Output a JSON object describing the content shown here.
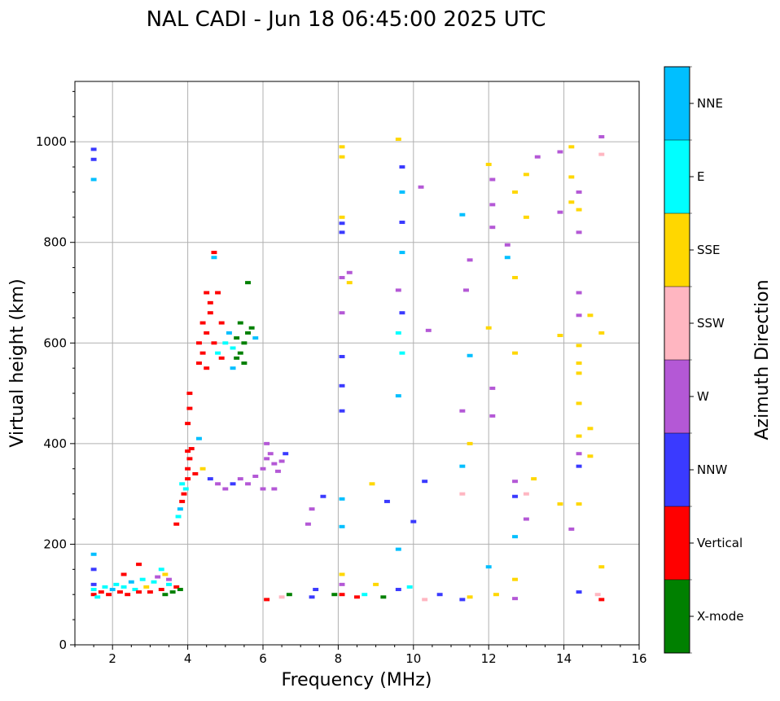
{
  "chart_data": {
    "type": "scatter",
    "title": "NAL CADI - Jun 18 06:45:00 2025 UTC",
    "xlabel": "Frequency (MHz)",
    "ylabel": "Virtual height (km)",
    "xlim": [
      1,
      16
    ],
    "ylim": [
      0,
      1120
    ],
    "xticks": [
      2,
      4,
      6,
      8,
      10,
      12,
      14,
      16
    ],
    "yticks": [
      0,
      200,
      400,
      600,
      800,
      1000
    ],
    "grid": true,
    "colorbar": {
      "label": "Azimuth Direction",
      "categories": [
        "X-mode",
        "Vertical",
        "NNW",
        "W",
        "SSW",
        "SSE",
        "E",
        "NNE"
      ],
      "colors": [
        "#008000",
        "#ff0000",
        "#3a3aff",
        "#b458d6",
        "#ffb6c1",
        "#ffd700",
        "#00ffff",
        "#00bfff"
      ]
    },
    "points_format": [
      "frequency_mhz",
      "height_km",
      "category_index"
    ],
    "points": [
      [
        1.5,
        100,
        1
      ],
      [
        1.5,
        110,
        6
      ],
      [
        1.5,
        120,
        2
      ],
      [
        1.6,
        95,
        6
      ],
      [
        1.7,
        105,
        1
      ],
      [
        1.8,
        115,
        6
      ],
      [
        1.9,
        100,
        1
      ],
      [
        2.0,
        110,
        7
      ],
      [
        2.1,
        120,
        6
      ],
      [
        2.2,
        105,
        1
      ],
      [
        2.3,
        115,
        6
      ],
      [
        2.4,
        100,
        1
      ],
      [
        2.5,
        125,
        7
      ],
      [
        2.6,
        110,
        6
      ],
      [
        2.7,
        105,
        1
      ],
      [
        2.8,
        130,
        6
      ],
      [
        2.9,
        115,
        5
      ],
      [
        3.0,
        105,
        1
      ],
      [
        3.1,
        125,
        6
      ],
      [
        3.2,
        135,
        3
      ],
      [
        3.3,
        110,
        1
      ],
      [
        3.4,
        140,
        5
      ],
      [
        3.5,
        120,
        6
      ],
      [
        3.6,
        105,
        0
      ],
      [
        3.7,
        115,
        1
      ],
      [
        3.5,
        130,
        3
      ],
      [
        3.3,
        150,
        6
      ],
      [
        2.7,
        160,
        1
      ],
      [
        1.5,
        180,
        7
      ],
      [
        1.5,
        150,
        2
      ],
      [
        2.3,
        140,
        1
      ],
      [
        3.8,
        110,
        0
      ],
      [
        3.4,
        100,
        0
      ],
      [
        1.5,
        965,
        2
      ],
      [
        1.5,
        985,
        2
      ],
      [
        1.5,
        925,
        7
      ],
      [
        3.7,
        240,
        1
      ],
      [
        3.75,
        255,
        6
      ],
      [
        3.8,
        270,
        7
      ],
      [
        3.85,
        285,
        1
      ],
      [
        3.9,
        300,
        1
      ],
      [
        3.95,
        310,
        6
      ],
      [
        4.0,
        330,
        1
      ],
      [
        4.0,
        350,
        1
      ],
      [
        4.05,
        370,
        1
      ],
      [
        4.0,
        385,
        1
      ],
      [
        4.1,
        390,
        1
      ],
      [
        4.0,
        440,
        1
      ],
      [
        4.05,
        470,
        1
      ],
      [
        4.05,
        500,
        1
      ],
      [
        3.85,
        320,
        6
      ],
      [
        4.2,
        340,
        1
      ],
      [
        4.3,
        410,
        7
      ],
      [
        4.4,
        350,
        5
      ],
      [
        4.6,
        330,
        2
      ],
      [
        4.8,
        320,
        3
      ],
      [
        5.0,
        310,
        3
      ],
      [
        5.2,
        320,
        2
      ],
      [
        5.4,
        330,
        3
      ],
      [
        5.6,
        320,
        3
      ],
      [
        5.8,
        335,
        3
      ],
      [
        6.0,
        350,
        3
      ],
      [
        6.1,
        370,
        3
      ],
      [
        6.2,
        380,
        3
      ],
      [
        6.3,
        360,
        3
      ],
      [
        6.4,
        345,
        3
      ],
      [
        6.5,
        365,
        3
      ],
      [
        6.6,
        380,
        2
      ],
      [
        6.1,
        400,
        3
      ],
      [
        6.3,
        310,
        3
      ],
      [
        6.0,
        310,
        3
      ],
      [
        4.3,
        560,
        1
      ],
      [
        4.4,
        580,
        1
      ],
      [
        4.3,
        600,
        1
      ],
      [
        4.5,
        620,
        1
      ],
      [
        4.4,
        640,
        1
      ],
      [
        4.6,
        660,
        1
      ],
      [
        4.7,
        600,
        1
      ],
      [
        4.8,
        580,
        6
      ],
      [
        4.9,
        570,
        1
      ],
      [
        4.6,
        680,
        1
      ],
      [
        4.5,
        700,
        1
      ],
      [
        4.7,
        780,
        1
      ],
      [
        4.7,
        770,
        7
      ],
      [
        5.0,
        600,
        6
      ],
      [
        5.1,
        620,
        7
      ],
      [
        5.2,
        590,
        6
      ],
      [
        5.3,
        570,
        0
      ],
      [
        5.4,
        580,
        0
      ],
      [
        5.5,
        600,
        0
      ],
      [
        5.6,
        620,
        0
      ],
      [
        5.4,
        640,
        0
      ],
      [
        5.3,
        610,
        0
      ],
      [
        5.5,
        560,
        0
      ],
      [
        5.7,
        630,
        0
      ],
      [
        5.6,
        720,
        0
      ],
      [
        5.2,
        550,
        7
      ],
      [
        4.9,
        640,
        1
      ],
      [
        5.8,
        610,
        7
      ],
      [
        4.5,
        550,
        1
      ],
      [
        4.8,
        700,
        1
      ],
      [
        8.1,
        990,
        5
      ],
      [
        8.1,
        970,
        5
      ],
      [
        8.1,
        850,
        5
      ],
      [
        8.1,
        838,
        2
      ],
      [
        8.1,
        820,
        2
      ],
      [
        8.1,
        730,
        3
      ],
      [
        8.1,
        660,
        3
      ],
      [
        8.1,
        573,
        2
      ],
      [
        8.1,
        515,
        2
      ],
      [
        8.1,
        465,
        2
      ],
      [
        8.1,
        290,
        7
      ],
      [
        8.1,
        235,
        7
      ],
      [
        8.1,
        140,
        5
      ],
      [
        8.1,
        120,
        3
      ],
      [
        8.1,
        100,
        1
      ],
      [
        8.3,
        740,
        3
      ],
      [
        8.3,
        720,
        5
      ],
      [
        8.9,
        320,
        5
      ],
      [
        9.6,
        1005,
        5
      ],
      [
        9.7,
        950,
        2
      ],
      [
        9.7,
        900,
        7
      ],
      [
        9.7,
        840,
        2
      ],
      [
        9.7,
        780,
        7
      ],
      [
        9.6,
        705,
        3
      ],
      [
        9.7,
        660,
        2
      ],
      [
        9.6,
        620,
        6
      ],
      [
        9.7,
        580,
        6
      ],
      [
        9.6,
        495,
        7
      ],
      [
        9.6,
        190,
        7
      ],
      [
        9.6,
        110,
        2
      ],
      [
        10.0,
        245,
        2
      ],
      [
        10.2,
        910,
        3
      ],
      [
        10.3,
        325,
        2
      ],
      [
        10.4,
        625,
        3
      ],
      [
        10.7,
        100,
        2
      ],
      [
        11.3,
        855,
        7
      ],
      [
        11.3,
        465,
        3
      ],
      [
        11.3,
        355,
        7
      ],
      [
        11.3,
        300,
        4
      ],
      [
        11.3,
        90,
        2
      ],
      [
        11.5,
        765,
        3
      ],
      [
        11.4,
        705,
        3
      ],
      [
        11.5,
        575,
        7
      ],
      [
        11.5,
        400,
        5
      ],
      [
        12.0,
        955,
        5
      ],
      [
        12.1,
        925,
        3
      ],
      [
        12.1,
        875,
        3
      ],
      [
        12.1,
        830,
        3
      ],
      [
        12.0,
        630,
        5
      ],
      [
        12.1,
        510,
        3
      ],
      [
        12.1,
        455,
        3
      ],
      [
        12.0,
        155,
        7
      ],
      [
        12.5,
        795,
        3
      ],
      [
        12.5,
        770,
        7
      ],
      [
        12.7,
        900,
        5
      ],
      [
        12.7,
        730,
        5
      ],
      [
        12.7,
        580,
        5
      ],
      [
        12.7,
        325,
        3
      ],
      [
        12.7,
        295,
        2
      ],
      [
        12.7,
        215,
        7
      ],
      [
        12.7,
        130,
        5
      ],
      [
        12.7,
        92,
        3
      ],
      [
        13.0,
        935,
        5
      ],
      [
        13.3,
        970,
        3
      ],
      [
        13.0,
        850,
        5
      ],
      [
        13.0,
        300,
        4
      ],
      [
        13.2,
        330,
        5
      ],
      [
        13.0,
        250,
        3
      ],
      [
        13.9,
        980,
        3
      ],
      [
        13.9,
        860,
        3
      ],
      [
        13.9,
        615,
        5
      ],
      [
        13.9,
        280,
        5
      ],
      [
        14.2,
        990,
        5
      ],
      [
        14.2,
        930,
        5
      ],
      [
        14.2,
        880,
        5
      ],
      [
        14.4,
        900,
        3
      ],
      [
        14.4,
        865,
        5
      ],
      [
        14.4,
        820,
        3
      ],
      [
        14.4,
        700,
        3
      ],
      [
        14.4,
        655,
        3
      ],
      [
        14.4,
        595,
        5
      ],
      [
        14.4,
        560,
        5
      ],
      [
        14.4,
        540,
        5
      ],
      [
        14.4,
        480,
        5
      ],
      [
        14.4,
        415,
        5
      ],
      [
        14.4,
        380,
        3
      ],
      [
        14.4,
        355,
        2
      ],
      [
        14.4,
        280,
        5
      ],
      [
        14.2,
        230,
        3
      ],
      [
        14.4,
        105,
        2
      ],
      [
        14.7,
        655,
        5
      ],
      [
        14.7,
        430,
        5
      ],
      [
        14.7,
        375,
        5
      ],
      [
        15.0,
        1010,
        3
      ],
      [
        15.0,
        620,
        5
      ],
      [
        15.0,
        155,
        5
      ],
      [
        15.0,
        90,
        1
      ],
      [
        15.0,
        975,
        4
      ],
      [
        14.9,
        100,
        4
      ],
      [
        6.1,
        90,
        1
      ],
      [
        6.5,
        95,
        4
      ],
      [
        6.7,
        100,
        0
      ],
      [
        7.3,
        95,
        2
      ],
      [
        7.4,
        110,
        2
      ],
      [
        7.2,
        240,
        3
      ],
      [
        7.3,
        270,
        3
      ],
      [
        7.6,
        295,
        2
      ],
      [
        7.9,
        100,
        0
      ],
      [
        8.5,
        95,
        1
      ],
      [
        8.7,
        100,
        6
      ],
      [
        9.0,
        120,
        5
      ],
      [
        9.2,
        95,
        0
      ],
      [
        9.3,
        285,
        2
      ],
      [
        9.9,
        115,
        6
      ],
      [
        10.3,
        90,
        4
      ],
      [
        12.2,
        100,
        5
      ],
      [
        11.5,
        95,
        5
      ]
    ]
  }
}
